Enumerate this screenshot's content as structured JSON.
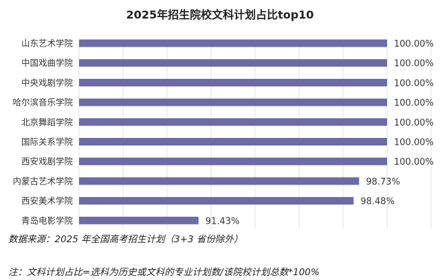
{
  "chart_data": {
    "type": "bar",
    "orientation": "horizontal",
    "title": "2025年招生院校文科计划占比top10",
    "categories": [
      "山东艺术学院",
      "中国戏曲学院",
      "中央戏剧学院",
      "哈尔滨音乐学院",
      "北京舞蹈学院",
      "国际关系学院",
      "西安戏剧学院",
      "内蒙古艺术学院",
      "西安美术学院",
      "青岛电影学院"
    ],
    "values": [
      100.0,
      100.0,
      100.0,
      100.0,
      100.0,
      100.0,
      100.0,
      98.73,
      98.48,
      91.43
    ],
    "labels": [
      "100.00%",
      "100.00%",
      "100.00%",
      "100.00%",
      "100.00%",
      "100.00%",
      "100.00%",
      "98.73%",
      "98.48%",
      "91.43%"
    ],
    "xlabel": "",
    "ylabel": "",
    "xlim": [
      86,
      102
    ],
    "grid": true,
    "bar_color": "#6b6ba6",
    "grid_color": "#e3e3e3"
  },
  "footer": {
    "source": "数据来源：2025 年全国高考招生计划（3+3 省份除外）",
    "note": "注：文科计划占比=选科为历史或文科的专业计划数/该院校计划总数*100%"
  }
}
